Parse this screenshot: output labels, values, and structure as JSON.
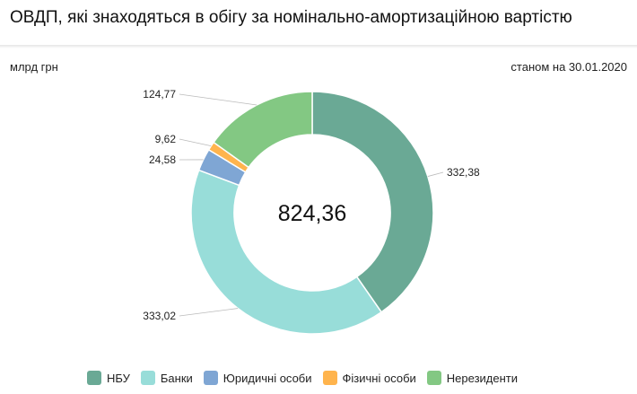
{
  "title": "ОВДП, які знаходяться в обігу за номінально-амортизаційною вартістю",
  "unit": "млрд грн",
  "date": "станом на 30.01.2020",
  "chart_data": {
    "type": "pie",
    "donut": true,
    "total_label": "824,36",
    "categories": [
      "НБУ",
      "Банки",
      "Юридичні особи",
      "Фізичні особи",
      "Нерезиденти"
    ],
    "values": [
      332.38,
      333.02,
      24.58,
      9.62,
      124.77
    ],
    "labels": [
      "332,38",
      "333,02",
      "24,58",
      "9,62",
      "124,77"
    ],
    "colors": [
      "#6aa995",
      "#98ddd9",
      "#7fa6d4",
      "#ffb44d",
      "#83c883"
    ],
    "legend": "bottom"
  }
}
